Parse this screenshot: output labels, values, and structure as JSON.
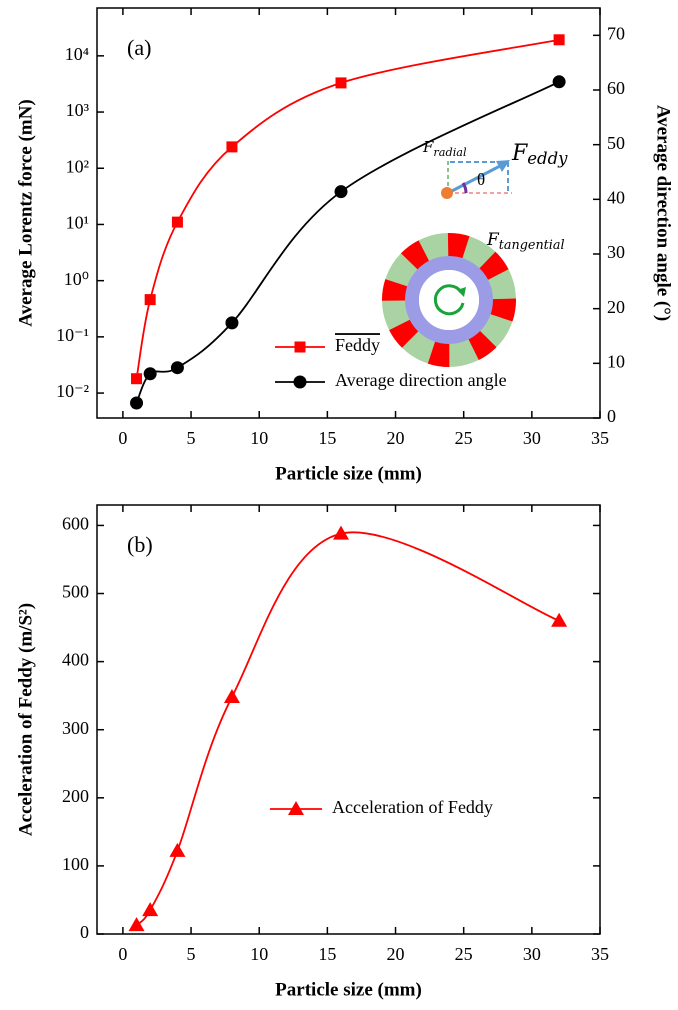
{
  "chart_data": [
    {
      "type": "line",
      "panel_label": "(a)",
      "x_label": "Particle size (mm)",
      "y_label": "Average Lorentz force (mN)",
      "y2_label": "Average direction angle (°)",
      "x": [
        1,
        2,
        4,
        8,
        16,
        32
      ],
      "series": [
        {
          "name": "Feddy",
          "color": "#ff0000",
          "marker": "square",
          "values": [
            0.018,
            0.46,
            11,
            240,
            3300,
            19300
          ]
        },
        {
          "name": "Average direction angle",
          "color": "#000000",
          "marker": "circle",
          "axis": "y2",
          "values": [
            2.75,
            8.1,
            9.2,
            17.4,
            41.4,
            61.5
          ]
        }
      ],
      "xlim": [
        -1.9,
        35
      ],
      "xticks": [
        0,
        5,
        10,
        15,
        20,
        25,
        30,
        35
      ],
      "ylim": [
        0.0036,
        71000
      ],
      "ylog": true,
      "yticks": [
        {
          "value": 0.01,
          "label": "10⁻²"
        },
        {
          "value": 0.1,
          "label": "10⁻¹"
        },
        {
          "value": 1,
          "label": "10⁰"
        },
        {
          "value": 10,
          "label": "10¹"
        },
        {
          "value": 100,
          "label": "10²"
        },
        {
          "value": 1000,
          "label": "10³"
        },
        {
          "value": 10000,
          "label": "10⁴"
        }
      ],
      "y2lim": [
        0,
        75
      ],
      "y2ticks": [
        0,
        10,
        20,
        30,
        40,
        50,
        60,
        70
      ],
      "legend": "lower center",
      "annotations": [
        {
          "text": "F",
          "subscript": "radial"
        },
        {
          "text": "F",
          "subscript": "eddy"
        },
        {
          "text": "θ"
        },
        {
          "text": "F",
          "subscript": "tangential"
        }
      ]
    },
    {
      "type": "line",
      "panel_label": "(b)",
      "x_label": "Particle size (mm)",
      "y_label": "Acceleration of Feddy (m/S²)",
      "x": [
        1,
        2,
        4,
        8,
        16,
        32
      ],
      "series": [
        {
          "name": "Acceleration of Feddy",
          "color": "#ff0000",
          "marker": "triangle",
          "values": [
            13,
            35,
            122,
            348,
            588,
            460
          ]
        }
      ],
      "xlim": [
        -1.9,
        35
      ],
      "xticks": [
        0,
        5,
        10,
        15,
        20,
        25,
        30,
        35
      ],
      "ylim": [
        0,
        630
      ],
      "yticks": [
        0,
        100,
        200,
        300,
        400,
        500,
        600
      ],
      "legend": "lower center"
    }
  ]
}
